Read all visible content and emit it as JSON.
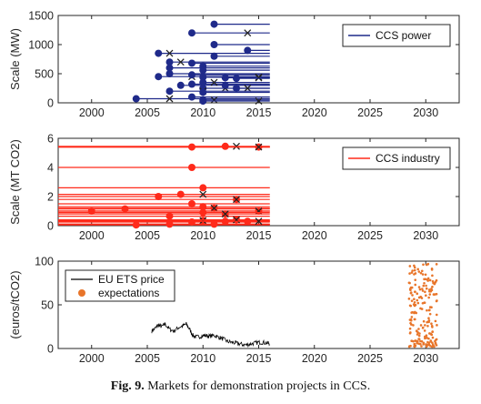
{
  "caption": {
    "label": "Fig. 9.",
    "text": "Markets for demonstration projects in CCS."
  },
  "chart_data": [
    {
      "type": "line",
      "ylabel": "Scale (MW)",
      "xlim": [
        1997,
        2033
      ],
      "ylim": [
        0,
        1500
      ],
      "xticks": [
        2000,
        2005,
        2010,
        2015,
        2020,
        2025,
        2030
      ],
      "yticks": [
        0,
        500,
        1000,
        1500
      ],
      "grid": false,
      "legend": {
        "placement": "top-right",
        "entries": [
          "CCS power"
        ]
      },
      "colors": {
        "series": "#1f2a8a",
        "marker": "#1f2a8a",
        "cross": "#222222"
      },
      "projects": [
        {
          "start": 2009,
          "scale": 1200,
          "cancelled": 2014
        },
        {
          "start": 2011,
          "scale": 1350
        },
        {
          "start": 2011,
          "scale": 1000
        },
        {
          "start": 2011,
          "scale": 800
        },
        {
          "start": 2014,
          "scale": 900
        },
        {
          "start": 2006,
          "scale": 850,
          "cancelled": 2007
        },
        {
          "start": 2007,
          "scale": 700,
          "cancelled": 2008
        },
        {
          "start": 2009,
          "scale": 680
        },
        {
          "start": 2007,
          "scale": 600
        },
        {
          "start": 2010,
          "scale": 630
        },
        {
          "start": 2010,
          "scale": 560
        },
        {
          "start": 2006,
          "scale": 450,
          "cancelled": 2009
        },
        {
          "start": 2007,
          "scale": 500
        },
        {
          "start": 2009,
          "scale": 480
        },
        {
          "start": 2010,
          "scale": 440,
          "cancelled": 2015
        },
        {
          "start": 2012,
          "scale": 430,
          "cancelled": 2015
        },
        {
          "start": 2013,
          "scale": 420
        },
        {
          "start": 2008,
          "scale": 300,
          "cancelled": 2010
        },
        {
          "start": 2009,
          "scale": 320
        },
        {
          "start": 2010,
          "scale": 350,
          "cancelled": 2011
        },
        {
          "start": 2010,
          "scale": 250,
          "cancelled": 2012
        },
        {
          "start": 2012,
          "scale": 300
        },
        {
          "start": 2013,
          "scale": 250,
          "cancelled": 2014
        },
        {
          "start": 2007,
          "scale": 200,
          "cancelled": 2010
        },
        {
          "start": 2010,
          "scale": 180
        },
        {
          "start": 2004,
          "scale": 70,
          "cancelled": 2007
        },
        {
          "start": 2009,
          "scale": 100
        },
        {
          "start": 2010,
          "scale": 50,
          "cancelled": 2011
        },
        {
          "start": 2010,
          "scale": 30,
          "cancelled": 2015
        }
      ],
      "line_end": 2016
    },
    {
      "type": "line",
      "ylabel": "Scale (MT CO2)",
      "xlim": [
        1997,
        2033
      ],
      "ylim": [
        0,
        6
      ],
      "xticks": [
        2000,
        2005,
        2010,
        2015,
        2020,
        2025,
        2030
      ],
      "yticks": [
        0,
        2,
        4,
        6
      ],
      "grid": false,
      "legend": {
        "placement": "top-right",
        "entries": [
          "CCS industry"
        ]
      },
      "colors": {
        "series": "#ff2a1a",
        "marker": "#ff2a1a",
        "cross": "#222222"
      },
      "projects": [
        {
          "start": 2009,
          "scale": 5.4
        },
        {
          "start": 2012,
          "scale": 5.45,
          "cancelled": 2013
        },
        {
          "start": 2015,
          "scale": 5.4,
          "cancelled": 2015
        },
        {
          "start": 2009,
          "scale": 4.0
        },
        {
          "start": 2010,
          "scale": 2.6
        },
        {
          "start": 2006,
          "scale": 2.0
        },
        {
          "start": 2008,
          "scale": 2.15,
          "cancelled": 2010
        },
        {
          "start": 2013,
          "scale": 1.8,
          "cancelled": 2013
        },
        {
          "start": 2000,
          "scale": 1.0
        },
        {
          "start": 2003,
          "scale": 1.15
        },
        {
          "start": 2009,
          "scale": 1.5
        },
        {
          "start": 2010,
          "scale": 1.3
        },
        {
          "start": 2011,
          "scale": 1.2,
          "cancelled": 2011
        },
        {
          "start": 2015,
          "scale": 1.0,
          "cancelled": 2015
        },
        {
          "start": 2007,
          "scale": 0.65
        },
        {
          "start": 2010,
          "scale": 0.9
        },
        {
          "start": 2012,
          "scale": 0.8,
          "cancelled": 2012
        },
        {
          "start": 2009,
          "scale": 0.25
        },
        {
          "start": 2010,
          "scale": 0.35,
          "cancelled": 2010
        },
        {
          "start": 2012,
          "scale": 0.3
        },
        {
          "start": 2013,
          "scale": 0.4,
          "cancelled": 2013
        },
        {
          "start": 2004,
          "scale": 0.05
        },
        {
          "start": 2007,
          "scale": 0.1
        },
        {
          "start": 2011,
          "scale": 0.1
        },
        {
          "start": 2014,
          "scale": 0.3,
          "cancelled": 2015
        }
      ],
      "line_start": 1997,
      "line_end": 2016
    },
    {
      "type": "line",
      "ylabel": "(euros/tCO2)",
      "xlim": [
        1997,
        2033
      ],
      "ylim": [
        0,
        100
      ],
      "xticks": [
        2000,
        2005,
        2010,
        2015,
        2020,
        2025,
        2030
      ],
      "yticks": [
        0,
        50,
        100
      ],
      "grid": false,
      "legend": {
        "placement": "top-left",
        "entries": [
          "EU ETS price",
          "expectations"
        ]
      },
      "colors": {
        "series": "#000000",
        "marker": "#e8752a"
      },
      "series": [
        {
          "name": "EU ETS price",
          "x": [
            2005.4,
            2005.7,
            2006.0,
            2006.3,
            2006.6,
            2007.0,
            2007.4,
            2007.8,
            2008.2,
            2008.5,
            2008.8,
            2009.1,
            2009.4,
            2009.8,
            2010.2,
            2010.6,
            2011.0,
            2011.4,
            2011.8,
            2012.2,
            2012.6,
            2013.0,
            2013.4,
            2013.8,
            2014.2,
            2014.6,
            2015.0,
            2015.4,
            2015.8,
            2016.0
          ],
          "y": [
            20,
            23,
            27,
            25,
            28,
            22,
            20,
            24,
            26,
            28,
            22,
            15,
            13,
            14,
            15,
            14,
            15,
            13,
            11,
            8,
            7,
            6,
            5,
            4,
            5,
            6,
            7,
            7,
            6,
            6
          ]
        },
        {
          "name": "expectations",
          "scatter_x_range": [
            2028.5,
            2031.0
          ],
          "scatter_y_range": [
            2,
            97
          ],
          "count": 200
        }
      ]
    }
  ]
}
